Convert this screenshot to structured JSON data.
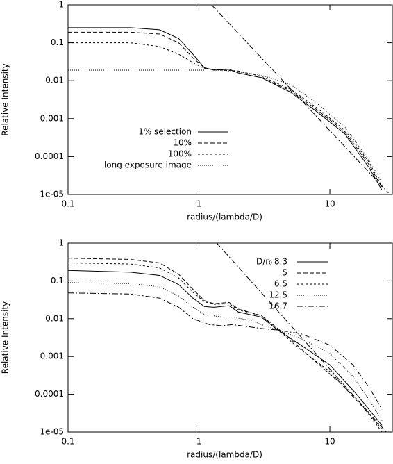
{
  "chart_data": [
    {
      "type": "line",
      "xlabel": "radius/(lambda/D)",
      "ylabel": "Relative Intensity",
      "xscale": "log",
      "yscale": "log",
      "xlim": [
        0.1,
        30
      ],
      "ylim": [
        1e-05,
        1
      ],
      "xticks": [
        0.1,
        1,
        10
      ],
      "yticks": [
        1,
        0.1,
        0.01,
        0.001,
        0.0001,
        {
          "value": 1e-05,
          "label": "1e-05"
        }
      ],
      "legend_loc": "center left",
      "series": [
        {
          "name": "1% selection",
          "color": "#000000",
          "style": "solid",
          "x": [
            0.1,
            0.3,
            0.5,
            0.7,
            0.9,
            1.1,
            1.3,
            1.7,
            2,
            3,
            5,
            8,
            13,
            20,
            25
          ],
          "values": [
            0.25,
            0.25,
            0.22,
            0.13,
            0.05,
            0.022,
            0.019,
            0.02,
            0.016,
            0.012,
            0.005,
            0.0015,
            0.0004,
            5e-05,
            1.3e-05
          ]
        },
        {
          "name": "10%",
          "color": "#000000",
          "style": "dashed",
          "x": [
            0.1,
            0.3,
            0.5,
            0.7,
            0.9,
            1.1,
            1.3,
            1.7,
            2,
            3,
            5,
            8,
            13,
            20,
            25
          ],
          "values": [
            0.19,
            0.19,
            0.17,
            0.1,
            0.04,
            0.022,
            0.019,
            0.02,
            0.016,
            0.012,
            0.0055,
            0.0017,
            0.00045,
            6e-05,
            1.5e-05
          ]
        },
        {
          "name": "100%",
          "color": "#000000",
          "style": "short-dashed",
          "x": [
            0.1,
            0.3,
            0.5,
            0.7,
            0.9,
            1.1,
            1.5,
            2,
            3,
            5,
            8,
            13,
            20,
            25
          ],
          "values": [
            0.1,
            0.1,
            0.08,
            0.05,
            0.03,
            0.021,
            0.019,
            0.018,
            0.013,
            0.006,
            0.0019,
            0.0005,
            7e-05,
            1.6e-05
          ]
        },
        {
          "name": "long exposure image",
          "color": "#000000",
          "style": "dotted",
          "x": [
            0.1,
            0.5,
            1,
            1.5,
            2,
            3,
            5,
            8,
            13,
            20,
            25
          ],
          "values": [
            0.019,
            0.019,
            0.019,
            0.019,
            0.017,
            0.014,
            0.008,
            0.0025,
            0.0006,
            8e-05,
            2e-05
          ]
        },
        {
          "color": "#000000",
          "style": "dash-dot",
          "x": [
            1.25,
            28
          ],
          "values": [
            1,
            1.1e-05
          ]
        }
      ]
    },
    {
      "type": "line",
      "xlabel": "radius/(lambda/D)",
      "ylabel": "Relative Intensity",
      "xscale": "log",
      "yscale": "log",
      "xlim": [
        0.1,
        30
      ],
      "ylim": [
        1e-05,
        1
      ],
      "xticks": [
        0.1,
        1,
        10
      ],
      "yticks": [
        1,
        0.1,
        0.01,
        0.001,
        0.0001,
        {
          "value": 1e-05,
          "label": "1e-05"
        }
      ],
      "legend_loc": "upper right",
      "legend_title": "D/r₀",
      "series": [
        {
          "name": "8.3",
          "color": "#000000",
          "style": "solid",
          "x": [
            0.1,
            0.3,
            0.5,
            0.7,
            0.9,
            1.1,
            1.3,
            1.7,
            2,
            3,
            4,
            6,
            10,
            16,
            25
          ],
          "values": [
            0.19,
            0.17,
            0.14,
            0.08,
            0.035,
            0.021,
            0.02,
            0.022,
            0.015,
            0.011,
            0.005,
            0.002,
            0.0006,
            0.0001,
            1.5e-05
          ]
        },
        {
          "name": "5",
          "color": "#000000",
          "style": "dashed",
          "x": [
            0.1,
            0.3,
            0.5,
            0.7,
            0.9,
            1.1,
            1.3,
            1.7,
            2,
            3,
            4.5,
            7,
            12,
            20,
            25
          ],
          "values": [
            0.4,
            0.37,
            0.3,
            0.15,
            0.06,
            0.03,
            0.025,
            0.027,
            0.018,
            0.012,
            0.004,
            0.001,
            0.0002,
            3e-05,
            1.2e-05
          ]
        },
        {
          "name": "6.5",
          "color": "#000000",
          "style": "short-dashed",
          "x": [
            0.1,
            0.3,
            0.5,
            0.7,
            0.9,
            1.1,
            1.3,
            1.7,
            2,
            3,
            4,
            6,
            10,
            17,
            25
          ],
          "values": [
            0.3,
            0.28,
            0.22,
            0.12,
            0.05,
            0.028,
            0.024,
            0.025,
            0.017,
            0.012,
            0.005,
            0.0015,
            0.0004,
            6e-05,
            1e-05
          ]
        },
        {
          "name": "12.5",
          "color": "#000000",
          "style": "dotted",
          "x": [
            0.1,
            0.3,
            0.5,
            0.7,
            0.9,
            1.1,
            1.5,
            1.8,
            2.5,
            3,
            4,
            6,
            10,
            15,
            20,
            25
          ],
          "values": [
            0.09,
            0.085,
            0.07,
            0.04,
            0.02,
            0.013,
            0.011,
            0.011,
            0.009,
            0.007,
            0.005,
            0.003,
            0.0012,
            0.0003,
            7e-05,
            2e-05
          ]
        },
        {
          "name": "16.7",
          "color": "#000000",
          "style": "dash-dot",
          "x": [
            0.1,
            0.3,
            0.5,
            0.7,
            0.9,
            1.2,
            1.5,
            1.8,
            2.5,
            3,
            4,
            6,
            10,
            15,
            20,
            25
          ],
          "values": [
            0.048,
            0.045,
            0.035,
            0.02,
            0.01,
            0.007,
            0.0065,
            0.007,
            0.006,
            0.0055,
            0.005,
            0.004,
            0.002,
            0.0006,
            0.00015,
            4e-05
          ]
        },
        {
          "color": "#000000",
          "style": "dash-dot",
          "x": [
            1.37,
            27
          ],
          "values": [
            1,
            1e-05
          ]
        }
      ]
    }
  ]
}
